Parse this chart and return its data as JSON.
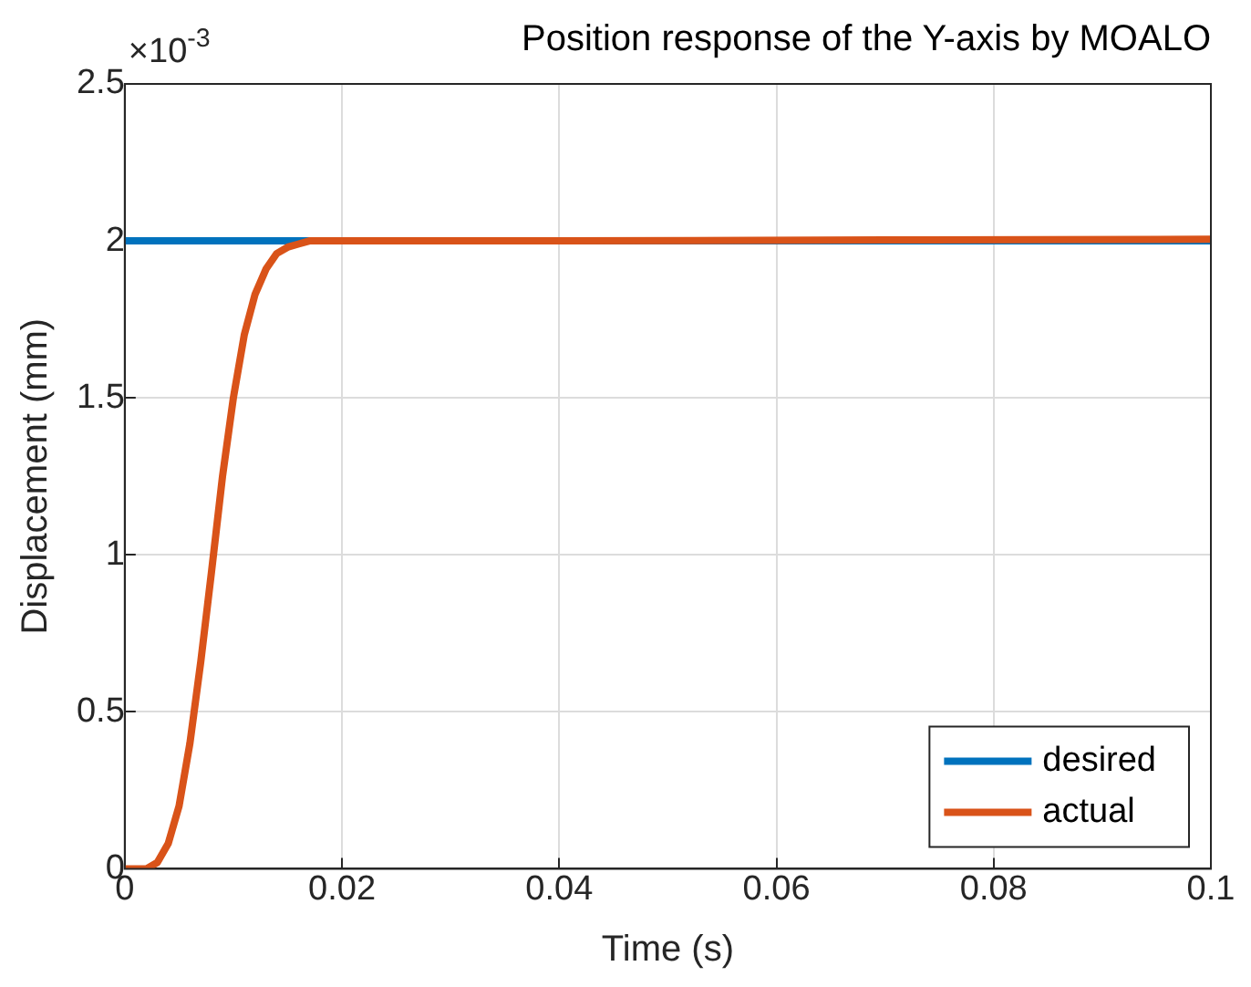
{
  "chart_data": {
    "type": "line",
    "title": "Position response of the Y-axis by MOALO",
    "xlabel": "Time (s)",
    "ylabel": "Displacement (mm)",
    "annotations": [
      "×10$^{-3}$"
    ],
    "xlim": [
      0,
      0.1
    ],
    "xticks": [
      0,
      0.02,
      0.04,
      0.06,
      0.08,
      0.1
    ],
    "ylim": [
      0,
      2.5
    ],
    "yticks": [
      0,
      0.5,
      1,
      1.5,
      2,
      2.5
    ],
    "grid": true,
    "legend": "bottom right",
    "line_style": "solid",
    "marker": "none",
    "series": [
      {
        "name": "desired",
        "color": "#0072bd",
        "x": [
          0,
          0.1
        ],
        "values": [
          2,
          2
        ]
      },
      {
        "name": "actual",
        "color": "#d95319",
        "x": [
          0,
          0.002,
          0.003,
          0.004,
          0.005,
          0.006,
          0.007,
          0.008,
          0.009,
          0.01,
          0.011,
          0.012,
          0.013,
          0.014,
          0.015,
          0.016,
          0.017,
          0.018,
          0.04,
          0.07,
          0.1
        ],
        "values": [
          0,
          0,
          0.02,
          0.08,
          0.2,
          0.4,
          0.66,
          0.95,
          1.25,
          1.5,
          1.7,
          1.83,
          1.91,
          1.96,
          1.98,
          1.99,
          2,
          2,
          2,
          2.003,
          2.005
        ]
      }
    ]
  }
}
